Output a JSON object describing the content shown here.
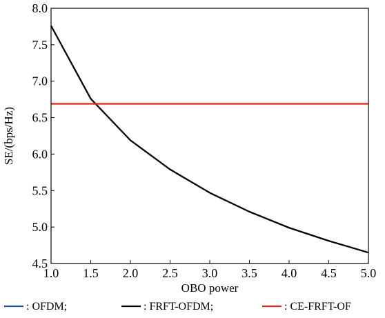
{
  "chart_data": {
    "type": "line",
    "title": "",
    "xlabel": "OBO power",
    "ylabel": "SE/(bps/Hz)",
    "xlim": [
      1.0,
      5.0
    ],
    "ylim": [
      4.5,
      8.0
    ],
    "xticks": [
      1.0,
      1.5,
      2.0,
      2.5,
      3.0,
      3.5,
      4.0,
      4.5,
      5.0
    ],
    "yticks": [
      4.5,
      5.0,
      5.5,
      6.0,
      6.5,
      7.0,
      7.5,
      8.0
    ],
    "xtick_labels": [
      "1.0",
      "1.5",
      "2.0",
      "2.5",
      "3.0",
      "3.5",
      "4.0",
      "4.5",
      "5.0"
    ],
    "ytick_labels": [
      "4.5",
      "5.0",
      "5.5",
      "6.0",
      "6.5",
      "7.0",
      "7.5",
      "8.0"
    ],
    "grid": false,
    "legend_position": "bottom",
    "series": [
      {
        "name": ": OFDM;",
        "legend_label": ": OFDM;",
        "color": "#1f4e9e",
        "x": [
          1.0,
          1.5,
          2.0,
          2.5,
          3.0,
          3.5,
          4.0,
          4.5,
          5.0
        ],
        "values": [
          7.76,
          6.76,
          6.19,
          5.79,
          5.47,
          5.21,
          4.99,
          4.81,
          4.65
        ]
      },
      {
        "name": ": FRFT-OFDM;",
        "legend_label": ": FRFT-OFDM;",
        "color": "#000000",
        "x": [
          1.0,
          1.5,
          2.0,
          2.5,
          3.0,
          3.5,
          4.0,
          4.5,
          5.0
        ],
        "values": [
          7.76,
          6.76,
          6.19,
          5.79,
          5.47,
          5.21,
          4.99,
          4.81,
          4.65
        ]
      },
      {
        "name": ": CE-FRFT-OFDM",
        "legend_label": ": CE-FRFT-OF",
        "color": "#e0221f",
        "x": [
          1.0,
          5.0
        ],
        "values": [
          6.69,
          6.69
        ]
      }
    ]
  }
}
